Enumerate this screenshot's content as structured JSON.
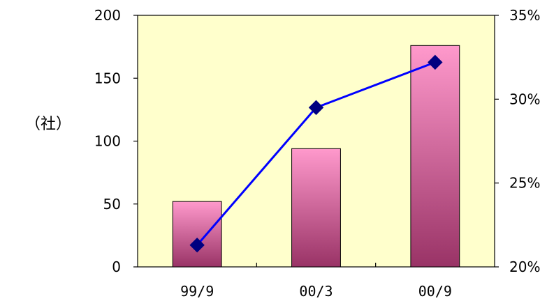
{
  "chart_data": {
    "type": "bar",
    "categories": [
      "99/9",
      "00/3",
      "00/9"
    ],
    "series": [
      {
        "kind": "bar",
        "axis": "left",
        "values": [
          52,
          94,
          176
        ]
      },
      {
        "kind": "line",
        "axis": "right",
        "values": [
          21.3,
          29.5,
          32.2
        ]
      }
    ],
    "ylabel": "（社）",
    "ylim": [
      0,
      200
    ],
    "yticks": [
      "0",
      "50",
      "100",
      "150",
      "200"
    ],
    "ytick_values": [
      0,
      50,
      100,
      150,
      200
    ],
    "y2lim": [
      20,
      35
    ],
    "y2ticks": [
      "20%",
      "25%",
      "30%",
      "35%"
    ],
    "y2tick_values": [
      20,
      25,
      30,
      35
    ],
    "grid": false,
    "colors": {
      "plot_background": "#FFFFCC",
      "bar_top": "#FF99CC",
      "bar_bottom": "#993366",
      "line": "#0000FF",
      "marker": "#000080"
    }
  }
}
